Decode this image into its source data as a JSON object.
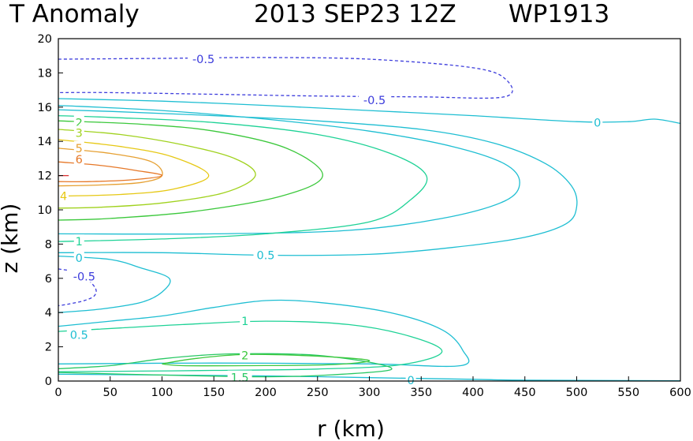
{
  "chart_data": {
    "type": "contour",
    "title": "T Anomaly",
    "subtitle": "2013 SEP23 12Z",
    "storm_id": "WP1913",
    "xlabel": "r (km)",
    "ylabel": "z (km)",
    "xlim": [
      0,
      600
    ],
    "ylim": [
      0,
      20
    ],
    "xticks": [
      0,
      50,
      100,
      150,
      200,
      250,
      300,
      350,
      400,
      450,
      500,
      550,
      600
    ],
    "yticks": [
      0,
      2,
      4,
      6,
      8,
      10,
      12,
      14,
      16,
      18,
      20
    ],
    "contours": [
      {
        "level": "-0.5",
        "color": "#3c3cdc",
        "dashed": true,
        "label": "-0.5",
        "label_at": [
          140,
          18.8
        ],
        "points": [
          [
            0,
            18.8
          ],
          [
            100,
            18.85
          ],
          [
            200,
            18.9
          ],
          [
            300,
            18.8
          ],
          [
            400,
            18.3
          ],
          [
            432,
            17.6
          ],
          [
            430,
            16.6
          ],
          [
            350,
            16.6
          ],
          [
            250,
            16.65
          ],
          [
            150,
            16.75
          ],
          [
            50,
            16.85
          ],
          [
            0,
            16.85
          ]
        ]
      },
      {
        "level": "-0.5",
        "color": "#3c3cdc",
        "dashed": false,
        "label": "-0.5",
        "label_at": [
          305,
          16.4
        ],
        "points": []
      },
      {
        "level": "0",
        "color": "#1ebed2",
        "dashed": false,
        "label": "0",
        "label_at": [
          520,
          15.1
        ],
        "points": [
          [
            0,
            16.5
          ],
          [
            100,
            16.35
          ],
          [
            200,
            16.1
          ],
          [
            300,
            15.8
          ],
          [
            400,
            15.5
          ],
          [
            500,
            15.15
          ],
          [
            550,
            15.15
          ],
          [
            575,
            15.3
          ],
          [
            600,
            15.05
          ]
        ]
      },
      {
        "level": "0.5",
        "color": "#1ebed2",
        "dashed": false,
        "label": "",
        "label_at": null,
        "points": [
          [
            0,
            16.1
          ],
          [
            100,
            15.8
          ],
          [
            200,
            15.3
          ],
          [
            300,
            14.6
          ],
          [
            380,
            13.7
          ],
          [
            430,
            12.7
          ],
          [
            445,
            11.6
          ],
          [
            430,
            10.5
          ],
          [
            370,
            9.5
          ],
          [
            280,
            8.8
          ],
          [
            150,
            8.6
          ],
          [
            0,
            8.6
          ]
        ]
      },
      {
        "level": "0.5",
        "color": "#1ebed2",
        "dashed": false,
        "label": "0.5",
        "label_at": [
          200,
          7.35
        ],
        "points": [
          [
            0,
            7.5
          ],
          [
            100,
            7.5
          ],
          [
            200,
            7.35
          ],
          [
            300,
            7.4
          ],
          [
            380,
            7.8
          ],
          [
            450,
            8.4
          ],
          [
            490,
            9.2
          ],
          [
            500,
            10.2
          ],
          [
            495,
            11.4
          ],
          [
            470,
            12.7
          ],
          [
            420,
            13.9
          ],
          [
            350,
            14.7
          ],
          [
            250,
            15.2
          ],
          [
            150,
            15.5
          ],
          [
            50,
            15.75
          ],
          [
            0,
            15.85
          ]
        ]
      },
      {
        "level": "1",
        "color": "#1ed296",
        "dashed": false,
        "label": "1",
        "label_at": [
          20,
          8.15
        ],
        "points": [
          [
            0,
            8.15
          ],
          [
            100,
            8.3
          ],
          [
            200,
            8.6
          ],
          [
            300,
            9.3
          ],
          [
            340,
            10.6
          ],
          [
            355,
            12.0
          ],
          [
            320,
            13.3
          ],
          [
            250,
            14.4
          ],
          [
            150,
            15.1
          ],
          [
            50,
            15.4
          ],
          [
            0,
            15.5
          ]
        ]
      },
      {
        "level": "2",
        "color": "#3cc83c",
        "dashed": false,
        "label": "2",
        "label_at": [
          20,
          15.1
        ],
        "points": [
          [
            0,
            15.2
          ],
          [
            80,
            15.0
          ],
          [
            150,
            14.6
          ],
          [
            220,
            13.6
          ],
          [
            255,
            12.0
          ],
          [
            215,
            10.8
          ],
          [
            130,
            9.9
          ],
          [
            50,
            9.5
          ],
          [
            0,
            9.4
          ]
        ]
      },
      {
        "level": "3",
        "color": "#a0d21e",
        "dashed": false,
        "label": "3",
        "label_at": [
          20,
          14.5
        ],
        "points": [
          [
            0,
            14.7
          ],
          [
            60,
            14.4
          ],
          [
            120,
            13.8
          ],
          [
            170,
            13.0
          ],
          [
            190,
            12.0
          ],
          [
            160,
            11.0
          ],
          [
            100,
            10.4
          ],
          [
            40,
            10.15
          ],
          [
            0,
            10.1
          ]
        ]
      },
      {
        "level": "4",
        "color": "#e6c814",
        "dashed": false,
        "label": "4",
        "label_at": [
          5,
          10.8
        ],
        "points": [
          [
            0,
            14.1
          ],
          [
            60,
            13.7
          ],
          [
            110,
            13.1
          ],
          [
            145,
            12.0
          ],
          [
            110,
            11.2
          ],
          [
            60,
            10.9
          ],
          [
            0,
            10.8
          ]
        ]
      },
      {
        "level": "5",
        "color": "#e6a032",
        "dashed": false,
        "label": "5",
        "label_at": [
          20,
          13.6
        ],
        "points": [
          [
            0,
            13.6
          ],
          [
            50,
            13.3
          ],
          [
            90,
            12.8
          ],
          [
            100,
            12.0
          ],
          [
            80,
            11.6
          ],
          [
            40,
            11.45
          ],
          [
            0,
            11.4
          ]
        ]
      },
      {
        "level": "6",
        "color": "#e67828",
        "dashed": false,
        "label": "6",
        "label_at": [
          20,
          12.95
        ],
        "points": [
          [
            0,
            12.8
          ],
          [
            40,
            12.6
          ],
          [
            75,
            12.3
          ],
          [
            100,
            12.0
          ],
          [
            70,
            11.75
          ],
          [
            30,
            11.65
          ],
          [
            0,
            11.65
          ]
        ]
      },
      {
        "level": "7",
        "color": "#dc3232",
        "dashed": false,
        "label": "",
        "label_at": null,
        "points": [
          [
            0,
            12.0
          ],
          [
            10,
            12.0
          ]
        ]
      },
      {
        "level": "0",
        "color": "#1ebed2",
        "dashed": false,
        "label": "0",
        "label_at": [
          20,
          7.2
        ],
        "points": [
          [
            0,
            7.3
          ],
          [
            50,
            7.1
          ],
          [
            80,
            6.6
          ],
          [
            107,
            6.0
          ],
          [
            100,
            5.2
          ],
          [
            80,
            4.6
          ],
          [
            40,
            4.2
          ],
          [
            0,
            4.0
          ]
        ]
      },
      {
        "level": "-0.5",
        "color": "#3c3cdc",
        "dashed": true,
        "label": "-0.5",
        "label_at": [
          25,
          6.1
        ],
        "points": [
          [
            0,
            6.55
          ],
          [
            20,
            6.3
          ],
          [
            35,
            5.5
          ],
          [
            35,
            5.0
          ],
          [
            25,
            4.7
          ],
          [
            10,
            4.5
          ],
          [
            0,
            4.4
          ]
        ]
      },
      {
        "level": "0",
        "color": "#1ebed2",
        "dashed": false,
        "label": "0",
        "label_at": [
          340,
          0.05
        ],
        "points": [
          [
            0,
            0.4
          ],
          [
            100,
            0.35
          ],
          [
            200,
            0.3
          ],
          [
            300,
            0.2
          ],
          [
            400,
            0.1
          ],
          [
            450,
            0.05
          ],
          [
            600,
            0.02
          ]
        ]
      },
      {
        "level": "0.5",
        "color": "#1ebed2",
        "dashed": false,
        "label": "0.5",
        "label_at": [
          20,
          2.7
        ],
        "points": [
          [
            0,
            3.2
          ],
          [
            50,
            3.5
          ],
          [
            100,
            3.8
          ],
          [
            150,
            4.3
          ],
          [
            200,
            4.7
          ],
          [
            250,
            4.6
          ],
          [
            320,
            4.0
          ],
          [
            370,
            3.0
          ],
          [
            390,
            1.8
          ],
          [
            388,
            0.9
          ],
          [
            300,
            1.0
          ],
          [
            150,
            1.05
          ],
          [
            0,
            1.0
          ]
        ]
      },
      {
        "level": "1",
        "color": "#1ed296",
        "dashed": false,
        "label": "1",
        "label_at": [
          180,
          3.5
        ],
        "points": [
          [
            0,
            2.9
          ],
          [
            60,
            3.1
          ],
          [
            120,
            3.3
          ],
          [
            200,
            3.5
          ],
          [
            280,
            3.3
          ],
          [
            340,
            2.6
          ],
          [
            370,
            1.7
          ],
          [
            330,
            0.95
          ],
          [
            250,
            0.7
          ],
          [
            150,
            0.62
          ],
          [
            80,
            0.58
          ],
          [
            0,
            0.55
          ]
        ]
      },
      {
        "level": "1.5",
        "color": "#28c864",
        "dashed": false,
        "label": "1.5",
        "label_at": [
          175,
          0.2
        ],
        "points": [
          [
            0,
            0.72
          ],
          [
            50,
            0.9
          ],
          [
            100,
            1.3
          ],
          [
            150,
            1.55
          ],
          [
            200,
            1.6
          ],
          [
            250,
            1.5
          ],
          [
            300,
            1.1
          ],
          [
            320,
            0.65
          ],
          [
            260,
            0.35
          ],
          [
            200,
            0.25
          ],
          [
            100,
            0.35
          ],
          [
            0,
            0.5
          ]
        ]
      },
      {
        "level": "2",
        "color": "#3cc83c",
        "dashed": false,
        "label": "2",
        "label_at": [
          180,
          1.5
        ],
        "points": [
          [
            100,
            1.0
          ],
          [
            130,
            1.3
          ],
          [
            180,
            1.55
          ],
          [
            250,
            1.45
          ],
          [
            300,
            1.2
          ],
          [
            260,
            0.95
          ],
          [
            180,
            0.9
          ],
          [
            120,
            0.9
          ],
          [
            100,
            1.0
          ]
        ]
      }
    ]
  }
}
